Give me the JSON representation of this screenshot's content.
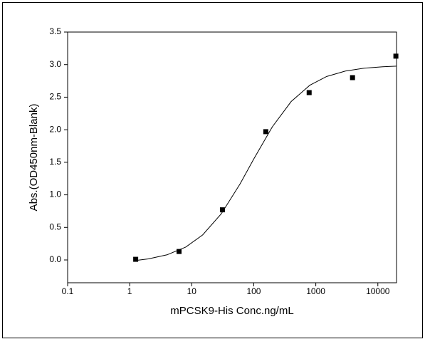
{
  "chart_data": {
    "type": "scatter",
    "x_label": "mPCSK9-His Conc.ng/mL",
    "y_label": "Abs.(OD450nm-Blank)",
    "xscale": "log",
    "xlim": [
      0.1,
      20000
    ],
    "xticks": [
      0.1,
      1,
      10,
      100,
      1000,
      10000
    ],
    "ylim": [
      -0.35,
      3.5
    ],
    "yticks": [
      {
        "value": 0,
        "label": "0.0"
      },
      0.5,
      {
        "value": 1,
        "label": "1.0"
      },
      1.5,
      {
        "value": 2,
        "label": "2.0"
      },
      2.5,
      {
        "value": 3,
        "label": "3.0"
      },
      3.5
    ],
    "grid": false,
    "series": [
      {
        "color": "#000000",
        "marker": "square",
        "x": [
          1.25,
          6.25,
          31.25,
          156.25,
          781.25,
          3906,
          19531
        ],
        "values": [
          0.01,
          0.13,
          0.77,
          1.97,
          2.57,
          2.8,
          3.13
        ]
      },
      {
        "color": "#000000",
        "marker": "line",
        "x": [
          1.25,
          2,
          4,
          8,
          15,
          30,
          60,
          100,
          200,
          400,
          800,
          1500,
          3000,
          6000,
          12000,
          20000
        ],
        "values": [
          -0.008,
          0.016,
          0.079,
          0.198,
          0.384,
          0.71,
          1.166,
          1.55,
          2.047,
          2.432,
          2.683,
          2.818,
          2.901,
          2.945,
          2.967,
          2.976
        ]
      }
    ]
  }
}
